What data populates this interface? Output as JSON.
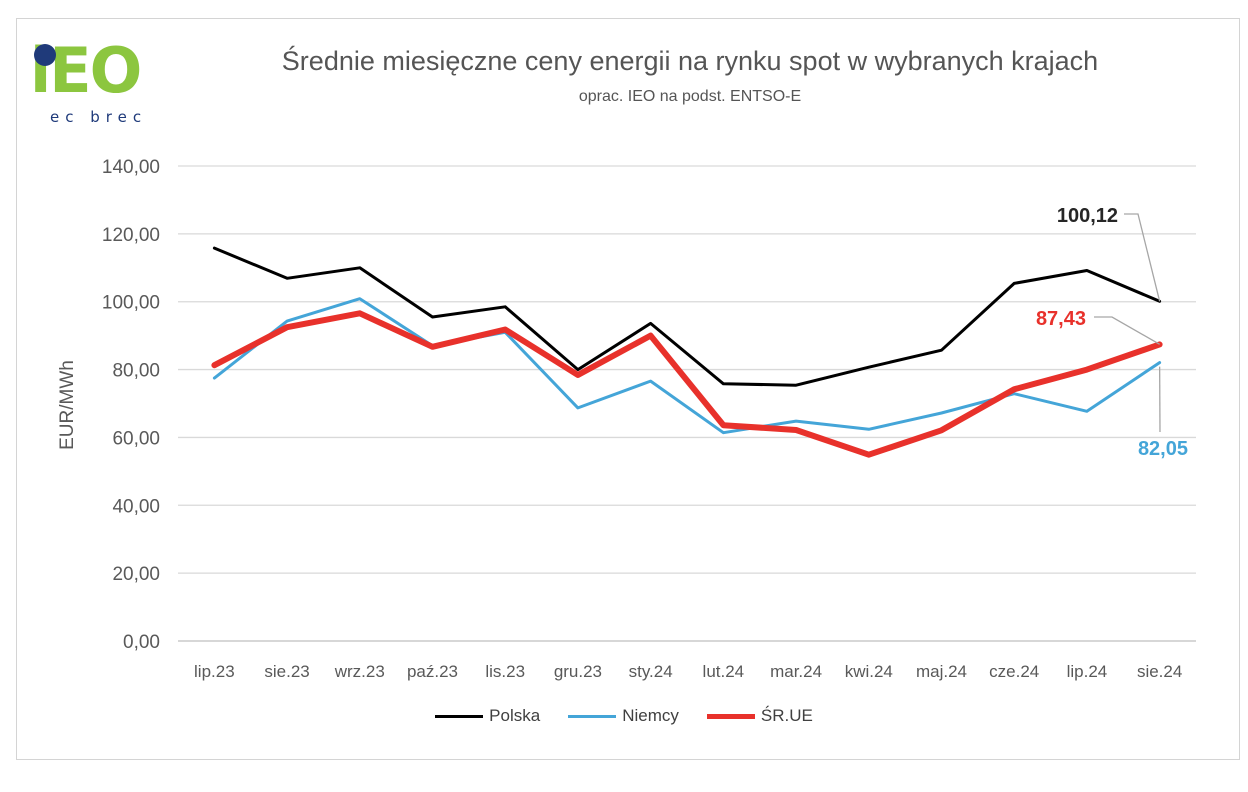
{
  "logo": {
    "text": "iEO",
    "subtext": "ec brec"
  },
  "chart_data": {
    "type": "line",
    "title": "Średnie miesięczne ceny energii na rynku spot w wybranych krajach",
    "subtitle": "oprac. IEO na podst. ENTSO-E",
    "ylabel": "EUR/MWh",
    "xlabel": "",
    "ylim": [
      0,
      140
    ],
    "yticks": [
      "0,00",
      "20,00",
      "40,00",
      "60,00",
      "80,00",
      "100,00",
      "120,00",
      "140,00"
    ],
    "categories": [
      "lip.23",
      "sie.23",
      "wrz.23",
      "paź.23",
      "lis.23",
      "gru.23",
      "sty.24",
      "lut.24",
      "mar.24",
      "kwi.24",
      "maj.24",
      "cze.24",
      "lip.24",
      "sie.24"
    ],
    "grid": true,
    "legend_position": "bottom",
    "series": [
      {
        "name": "Polska",
        "color": "#000000",
        "width": 3,
        "values": [
          115.8,
          106.9,
          110.0,
          95.5,
          98.5,
          80.0,
          93.6,
          75.8,
          75.4,
          80.7,
          85.7,
          105.4,
          109.2,
          100.12
        ],
        "end_label": "100,12",
        "label_color": "#262626"
      },
      {
        "name": "Niemcy",
        "color": "#44a5d8",
        "width": 3,
        "values": [
          77.5,
          94.3,
          100.9,
          87.0,
          91.0,
          68.7,
          76.6,
          61.4,
          64.8,
          62.4,
          67.2,
          72.9,
          67.7,
          82.05
        ],
        "end_label": "82,05",
        "label_color": "#44a5d8"
      },
      {
        "name": "ŚR.UE",
        "color": "#e8312b",
        "width": 6,
        "values": [
          81.3,
          92.5,
          96.6,
          86.7,
          91.8,
          78.4,
          90.0,
          63.6,
          62.2,
          54.9,
          62.1,
          74.2,
          80.0,
          87.43
        ],
        "end_label": "87,43",
        "label_color": "#e8312b"
      }
    ]
  }
}
